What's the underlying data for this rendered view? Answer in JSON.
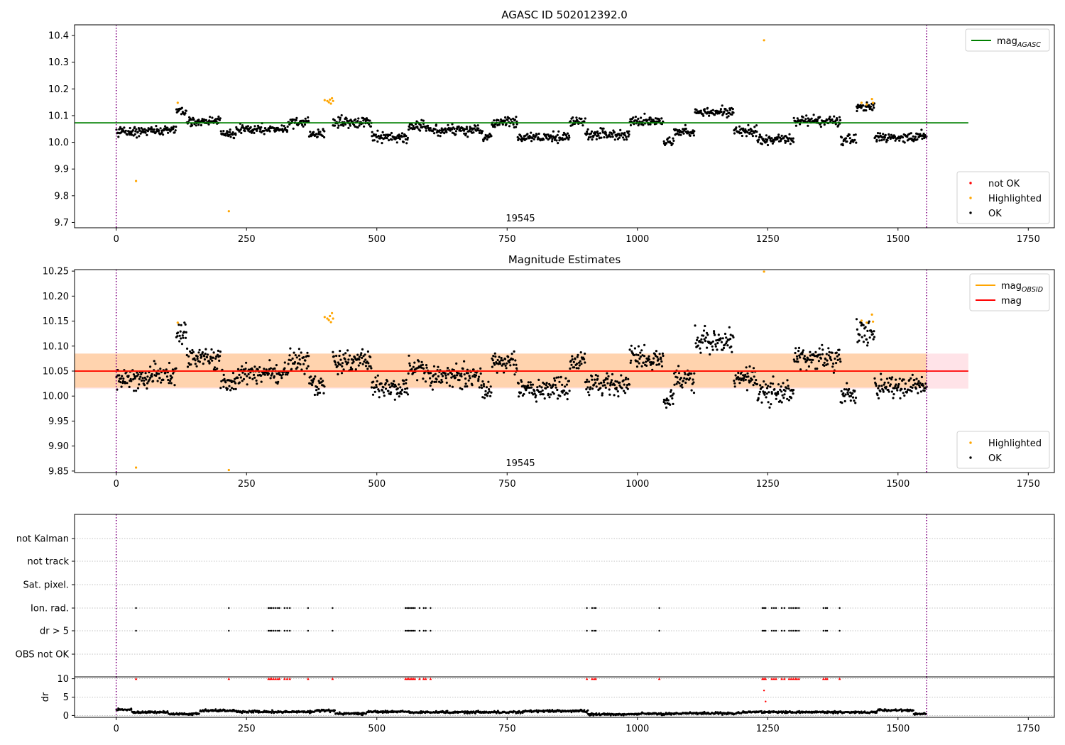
{
  "chart_data": [
    {
      "type": "scatter",
      "title": "AGASC ID 502012392.0",
      "xlim": [
        -80,
        1800
      ],
      "ylim": [
        9.68,
        10.44
      ],
      "xticks": [
        0,
        250,
        500,
        750,
        1000,
        1250,
        1500,
        1750
      ],
      "yticks": [
        9.7,
        9.8,
        9.9,
        10.0,
        10.1,
        10.2,
        10.3,
        10.4
      ],
      "ytick_labels": [
        "9.7",
        "9.8",
        "9.9",
        "10.0",
        "10.1",
        "10.2",
        "10.3",
        "10.4"
      ],
      "annotation": "19545",
      "obs_boundaries": [
        0,
        1555
      ],
      "reference_lines": [
        {
          "name": "mag_AGASC",
          "y": 10.073,
          "x": [
            -80,
            1635
          ],
          "color": "#008000"
        }
      ],
      "legends": [
        {
          "position": "upper-right",
          "entries": [
            {
              "label": "mag",
              "sub": "AGASC",
              "marker": "line",
              "color": "#008000"
            }
          ]
        },
        {
          "position": "lower-right",
          "entries": [
            {
              "label": "not OK",
              "marker": "dot",
              "color": "#ff0000"
            },
            {
              "label": "Highlighted",
              "marker": "dot",
              "color": "#ffa500"
            },
            {
              "label": "OK",
              "marker": "dot",
              "color": "#000000"
            }
          ]
        }
      ],
      "series": [
        {
          "name": "OK",
          "color": "#000000",
          "segments": [
            [
              0,
              60,
              10.04
            ],
            [
              60,
              115,
              10.045
            ],
            [
              115,
              135,
              10.12
            ],
            [
              135,
              200,
              10.08
            ],
            [
              200,
              230,
              10.03
            ],
            [
              230,
              330,
              10.05
            ],
            [
              330,
              370,
              10.075
            ],
            [
              370,
              400,
              10.03
            ],
            [
              415,
              490,
              10.075
            ],
            [
              490,
              560,
              10.02
            ],
            [
              560,
              600,
              10.06
            ],
            [
              600,
              700,
              10.045
            ],
            [
              700,
              720,
              10.02
            ],
            [
              720,
              770,
              10.075
            ],
            [
              770,
              870,
              10.02
            ],
            [
              870,
              900,
              10.075
            ],
            [
              900,
              985,
              10.03
            ],
            [
              985,
              1050,
              10.08
            ],
            [
              1050,
              1070,
              10.0
            ],
            [
              1070,
              1110,
              10.04
            ],
            [
              1110,
              1185,
              10.115
            ],
            [
              1185,
              1230,
              10.04
            ],
            [
              1230,
              1300,
              10.01
            ],
            [
              1300,
              1390,
              10.08
            ],
            [
              1390,
              1420,
              10.01
            ],
            [
              1420,
              1455,
              10.13
            ],
            [
              1455,
              1555,
              10.02
            ]
          ]
        },
        {
          "name": "Highlighted",
          "color": "#ffa500",
          "points": [
            [
              38,
              9.855
            ],
            [
              118,
              10.148
            ],
            [
              216,
              9.742
            ],
            [
              400,
              10.158
            ],
            [
              405,
              10.155
            ],
            [
              408,
              10.15
            ],
            [
              410,
              10.16
            ],
            [
              412,
              10.145
            ],
            [
              414,
              10.165
            ],
            [
              416,
              10.155
            ],
            [
              1243,
              10.382
            ],
            [
              1430,
              10.148
            ],
            [
              1440,
              10.142
            ],
            [
              1450,
              10.162
            ],
            [
              1452,
              10.148
            ]
          ]
        }
      ]
    },
    {
      "type": "scatter",
      "title": "Magnitude Estimates",
      "xlim": [
        -80,
        1800
      ],
      "ylim": [
        9.847,
        10.253
      ],
      "xticks": [
        0,
        250,
        500,
        750,
        1000,
        1250,
        1500,
        1750
      ],
      "yticks": [
        9.85,
        9.9,
        9.95,
        10.0,
        10.05,
        10.1,
        10.15,
        10.2,
        10.25
      ],
      "ytick_labels": [
        "9.85",
        "9.90",
        "9.95",
        "10.00",
        "10.05",
        "10.10",
        "10.15",
        "10.20",
        "10.25"
      ],
      "annotation": "19545",
      "obs_boundaries": [
        0,
        1555
      ],
      "bands": [
        {
          "y": [
            10.015,
            10.085
          ],
          "x": [
            -80,
            1635
          ],
          "color": "#ffc0cb",
          "opacity": 0.45
        },
        {
          "y": [
            10.017,
            10.085
          ],
          "x": [
            -80,
            1555
          ],
          "color": "#ffa500",
          "opacity": 0.25
        }
      ],
      "reference_lines": [
        {
          "name": "mag_OBSID",
          "y": 10.05,
          "x": [
            -80,
            1555
          ],
          "color": "#ffa500"
        },
        {
          "name": "mag",
          "y": 10.05,
          "x": [
            -80,
            1635
          ],
          "color": "#ff0000"
        }
      ],
      "legends": [
        {
          "position": "upper-right",
          "entries": [
            {
              "label": "mag",
              "sub": "OBSID",
              "marker": "line",
              "color": "#ffa500"
            },
            {
              "label": "mag",
              "sub": "",
              "marker": "line",
              "color": "#ff0000"
            }
          ]
        },
        {
          "position": "lower-right",
          "entries": [
            {
              "label": "Highlighted",
              "marker": "dot",
              "color": "#ffa500"
            },
            {
              "label": "OK",
              "marker": "dot",
              "color": "#000000"
            }
          ]
        }
      ],
      "series": [
        {
          "name": "OK",
          "color": "#000000",
          "segments": [
            [
              0,
              60,
              10.035
            ],
            [
              60,
              115,
              10.04
            ],
            [
              115,
              135,
              10.125
            ],
            [
              135,
              200,
              10.075
            ],
            [
              200,
              230,
              10.025
            ],
            [
              230,
              330,
              10.045
            ],
            [
              330,
              370,
              10.07
            ],
            [
              370,
              400,
              10.02
            ],
            [
              415,
              490,
              10.07
            ],
            [
              490,
              560,
              10.015
            ],
            [
              560,
              600,
              10.055
            ],
            [
              600,
              700,
              10.04
            ],
            [
              700,
              720,
              10.01
            ],
            [
              720,
              770,
              10.07
            ],
            [
              770,
              870,
              10.015
            ],
            [
              870,
              900,
              10.07
            ],
            [
              900,
              985,
              10.025
            ],
            [
              985,
              1050,
              10.075
            ],
            [
              1050,
              1070,
              9.995
            ],
            [
              1070,
              1110,
              10.035
            ],
            [
              1110,
              1185,
              10.11
            ],
            [
              1185,
              1230,
              10.035
            ],
            [
              1230,
              1300,
              10.005
            ],
            [
              1300,
              1390,
              10.075
            ],
            [
              1390,
              1420,
              10.005
            ],
            [
              1420,
              1455,
              10.125
            ],
            [
              1455,
              1555,
              10.02
            ]
          ]
        },
        {
          "name": "Highlighted",
          "color": "#ffa500",
          "points": [
            [
              38,
              9.857
            ],
            [
              118,
              10.147
            ],
            [
              216,
              9.852
            ],
            [
              400,
              10.158
            ],
            [
              405,
              10.155
            ],
            [
              408,
              10.152
            ],
            [
              410,
              10.16
            ],
            [
              412,
              10.148
            ],
            [
              414,
              10.166
            ],
            [
              416,
              10.155
            ],
            [
              1243,
              10.249
            ],
            [
              1430,
              10.151
            ],
            [
              1440,
              10.147
            ],
            [
              1450,
              10.163
            ],
            [
              1452,
              10.149
            ]
          ]
        }
      ]
    },
    {
      "type": "scatter",
      "title": "",
      "xlim": [
        -80,
        1800
      ],
      "categories": [
        "not Kalman",
        "not track",
        "Sat. pixel.",
        "Ion. rad.",
        "dr > 5",
        "OBS not OK"
      ],
      "obs_boundaries": [
        0,
        1555
      ],
      "flag_times": [
        38,
        216,
        292,
        295,
        298,
        302,
        306,
        310,
        313,
        323,
        328,
        333,
        368,
        415,
        555,
        558,
        561,
        564,
        567,
        570,
        573,
        582,
        590,
        594,
        603,
        903,
        913,
        917,
        920,
        1042,
        1240,
        1243,
        1246,
        1258,
        1262,
        1266,
        1277,
        1282,
        1291,
        1295,
        1299,
        1303,
        1306,
        1310,
        1357,
        1361,
        1364,
        1388
      ],
      "flagged_categories": [
        "Ion. rad.",
        "dr > 5"
      ],
      "series_color": "#000000"
    },
    {
      "type": "scatter",
      "title": "",
      "ylabel": "dr",
      "xlim": [
        -80,
        1800
      ],
      "ylim": [
        -0.5,
        10.5
      ],
      "yticks": [
        0,
        5,
        10
      ],
      "ytick_labels": [
        "0",
        "5",
        "10"
      ],
      "xticks": [
        0,
        250,
        500,
        750,
        1000,
        1250,
        1500,
        1750
      ],
      "obs_boundaries": [
        0,
        1555
      ],
      "clipped_marker_value": 10,
      "clipped_color": "#ff0000",
      "extra_red_points": [
        [
          1243,
          6.8
        ],
        [
          1246,
          3.8
        ]
      ],
      "baseline_segments": [
        [
          0,
          30,
          1.6
        ],
        [
          30,
          100,
          0.9
        ],
        [
          100,
          160,
          0.4
        ],
        [
          160,
          230,
          1.3
        ],
        [
          230,
          380,
          1.0
        ],
        [
          380,
          420,
          1.3
        ],
        [
          420,
          480,
          0.5
        ],
        [
          480,
          560,
          1.0
        ],
        [
          560,
          780,
          0.9
        ],
        [
          780,
          905,
          1.2
        ],
        [
          905,
          1000,
          0.3
        ],
        [
          1000,
          1085,
          0.5
        ],
        [
          1085,
          1200,
          0.6
        ],
        [
          1200,
          1390,
          0.9
        ],
        [
          1390,
          1460,
          0.9
        ],
        [
          1460,
          1530,
          1.4
        ],
        [
          1530,
          1555,
          0.4
        ]
      ]
    }
  ]
}
